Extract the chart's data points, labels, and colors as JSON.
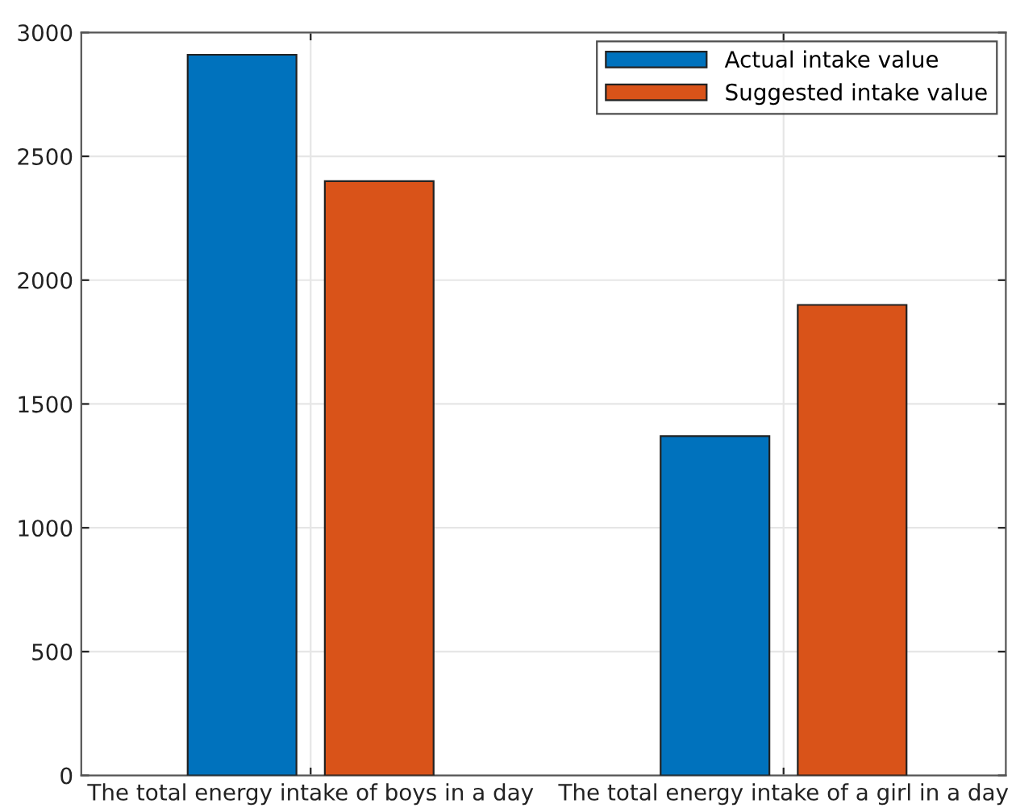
{
  "chart_data": {
    "type": "bar",
    "categories": [
      "The total energy intake of boys in a day",
      "The total energy intake of a girl in a day"
    ],
    "series": [
      {
        "name": "Actual intake value",
        "color": "#0072bd",
        "values": [
          2910,
          1370
        ]
      },
      {
        "name": "Suggested intake value",
        "color": "#d95319",
        "values": [
          2400,
          1900
        ]
      }
    ],
    "ylim": [
      0,
      3000
    ],
    "yticks": [
      0,
      500,
      1000,
      1500,
      2000,
      2500,
      3000
    ],
    "grid": true,
    "legend": "top right"
  }
}
